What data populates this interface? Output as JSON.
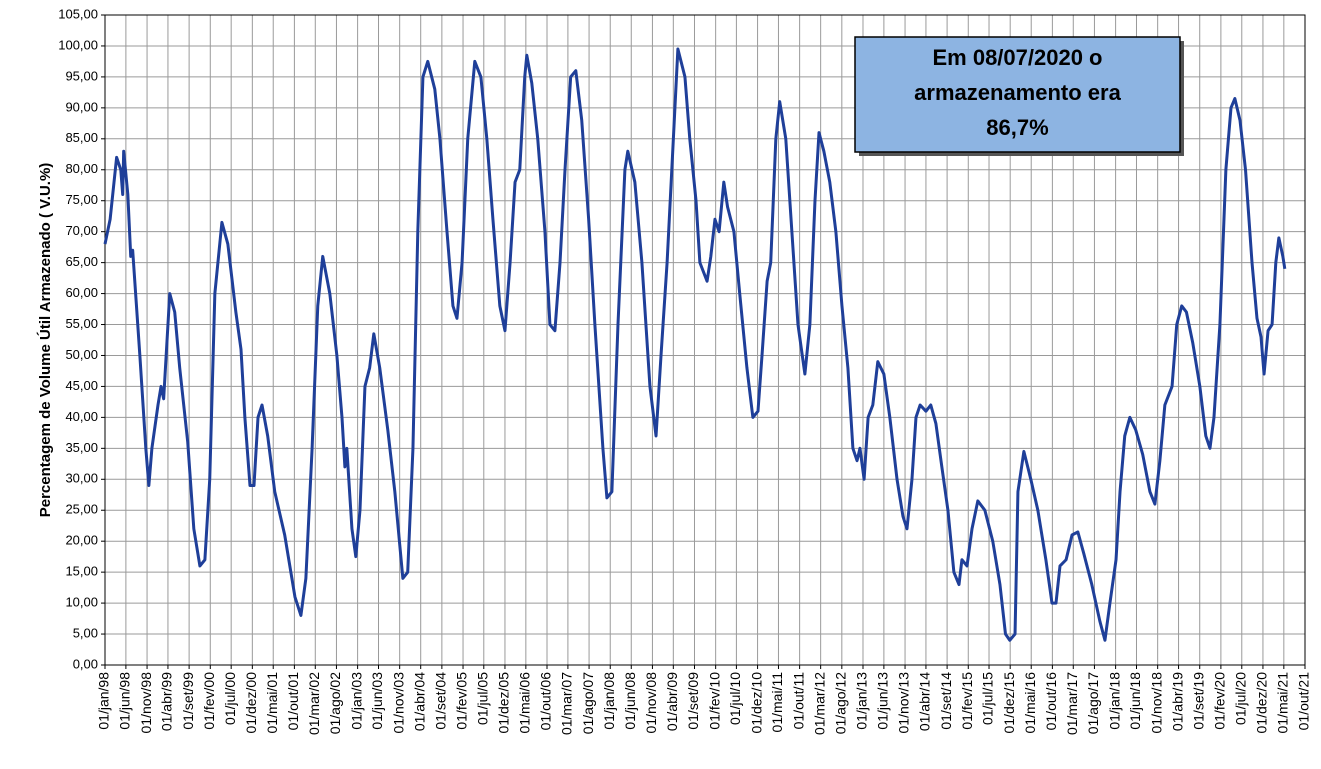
{
  "chart_data": {
    "type": "line",
    "y_label": "Percentagem de Volume Útil Armazenado ( V.U.%)",
    "annotation": [
      "Em 08/07/2020 o",
      "armazenamento era",
      "86,7%"
    ],
    "annotation_color": "#8db4e2",
    "grid": true,
    "xlim": [
      "1998-01-01",
      "2021-10-01"
    ],
    "ylim": [
      0,
      105
    ],
    "yticks": [
      {
        "value": 0,
        "label": "0,00"
      },
      {
        "value": 5,
        "label": "5,00"
      },
      {
        "value": 10,
        "label": "10,00"
      },
      {
        "value": 15,
        "label": "15,00"
      },
      {
        "value": 20,
        "label": "20,00"
      },
      {
        "value": 25,
        "label": "25,00"
      },
      {
        "value": 30,
        "label": "30,00"
      },
      {
        "value": 35,
        "label": "35,00"
      },
      {
        "value": 40,
        "label": "40,00"
      },
      {
        "value": 45,
        "label": "45,00"
      },
      {
        "value": 50,
        "label": "50,00"
      },
      {
        "value": 55,
        "label": "55,00"
      },
      {
        "value": 60,
        "label": "60,00"
      },
      {
        "value": 65,
        "label": "65,00"
      },
      {
        "value": 70,
        "label": "70,00"
      },
      {
        "value": 75,
        "label": "75,00"
      },
      {
        "value": 80,
        "label": "80,00"
      },
      {
        "value": 85,
        "label": "85,00"
      },
      {
        "value": 90,
        "label": "90,00"
      },
      {
        "value": 95,
        "label": "95,00"
      },
      {
        "value": 100,
        "label": "100,00"
      },
      {
        "value": 105,
        "label": "105,00"
      }
    ],
    "xticks": [
      {
        "value": "1998-01-01",
        "label": "01/jan/98"
      },
      {
        "value": "1998-06-01",
        "label": "01/jun/98"
      },
      {
        "value": "1998-11-01",
        "label": "01/nov/98"
      },
      {
        "value": "1999-04-01",
        "label": "01/abr/99"
      },
      {
        "value": "1999-09-01",
        "label": "01/set/99"
      },
      {
        "value": "2000-02-01",
        "label": "01/fev/00"
      },
      {
        "value": "2000-07-01",
        "label": "01/jul/00"
      },
      {
        "value": "2000-12-01",
        "label": "01/dez/00"
      },
      {
        "value": "2001-05-01",
        "label": "01/mai/01"
      },
      {
        "value": "2001-10-01",
        "label": "01/out/01"
      },
      {
        "value": "2002-03-01",
        "label": "01/mar/02"
      },
      {
        "value": "2002-08-01",
        "label": "01/ago/02"
      },
      {
        "value": "2003-01-01",
        "label": "01/jan/03"
      },
      {
        "value": "2003-06-01",
        "label": "01/jun/03"
      },
      {
        "value": "2003-11-01",
        "label": "01/nov/03"
      },
      {
        "value": "2004-04-01",
        "label": "01/abr/04"
      },
      {
        "value": "2004-09-01",
        "label": "01/set/04"
      },
      {
        "value": "2005-02-01",
        "label": "01/fev/05"
      },
      {
        "value": "2005-07-01",
        "label": "01/jul/05"
      },
      {
        "value": "2005-12-01",
        "label": "01/dez/05"
      },
      {
        "value": "2006-05-01",
        "label": "01/mai/06"
      },
      {
        "value": "2006-10-01",
        "label": "01/out/06"
      },
      {
        "value": "2007-03-01",
        "label": "01/mar/07"
      },
      {
        "value": "2007-08-01",
        "label": "01/ago/07"
      },
      {
        "value": "2008-01-01",
        "label": "01/jan/08"
      },
      {
        "value": "2008-06-01",
        "label": "01/jun/08"
      },
      {
        "value": "2008-11-01",
        "label": "01/nov/08"
      },
      {
        "value": "2009-04-01",
        "label": "01/abr/09"
      },
      {
        "value": "2009-09-01",
        "label": "01/set/09"
      },
      {
        "value": "2010-02-01",
        "label": "01/fev/10"
      },
      {
        "value": "2010-07-01",
        "label": "01/jul/10"
      },
      {
        "value": "2010-12-01",
        "label": "01/dez/10"
      },
      {
        "value": "2011-05-01",
        "label": "01/mai/11"
      },
      {
        "value": "2011-10-01",
        "label": "01/out/11"
      },
      {
        "value": "2012-03-01",
        "label": "01/mar/12"
      },
      {
        "value": "2012-08-01",
        "label": "01/ago/12"
      },
      {
        "value": "2013-01-01",
        "label": "01/jan/13"
      },
      {
        "value": "2013-06-01",
        "label": "01/jun/13"
      },
      {
        "value": "2013-11-01",
        "label": "01/nov/13"
      },
      {
        "value": "2014-04-01",
        "label": "01/abr/14"
      },
      {
        "value": "2014-09-01",
        "label": "01/set/14"
      },
      {
        "value": "2015-02-01",
        "label": "01/fev/15"
      },
      {
        "value": "2015-07-01",
        "label": "01/jul/15"
      },
      {
        "value": "2015-12-01",
        "label": "01/dez/15"
      },
      {
        "value": "2016-05-01",
        "label": "01/mai/16"
      },
      {
        "value": "2016-10-01",
        "label": "01/out/16"
      },
      {
        "value": "2017-03-01",
        "label": "01/mar/17"
      },
      {
        "value": "2017-08-01",
        "label": "01/ago/17"
      },
      {
        "value": "2018-01-01",
        "label": "01/jan/18"
      },
      {
        "value": "2018-06-01",
        "label": "01/jun/18"
      },
      {
        "value": "2018-11-01",
        "label": "01/nov/18"
      },
      {
        "value": "2019-04-01",
        "label": "01/abr/19"
      },
      {
        "value": "2019-09-01",
        "label": "01/set/19"
      },
      {
        "value": "2020-02-01",
        "label": "01/fev/20"
      },
      {
        "value": "2020-07-01",
        "label": "01/jul/20"
      },
      {
        "value": "2020-12-01",
        "label": "01/dez/20"
      },
      {
        "value": "2021-05-01",
        "label": "01/mai/21"
      },
      {
        "value": "2021-10-01",
        "label": "01/out/21"
      }
    ],
    "x": [
      "1998-01-01",
      "1998-02-07",
      "1998-03-26",
      "1998-04-25",
      "1998-05-09",
      "1998-05-16",
      "1998-06-15",
      "1998-07-06",
      "1998-07-20",
      "1998-09-10",
      "1998-10-23",
      "1998-11-14",
      "1998-12-06",
      "1999-01-19",
      "1999-02-10",
      "1999-03-01",
      "1999-04-14",
      "1999-05-20",
      "1999-06-25",
      "1999-08-22",
      "1999-10-05",
      "1999-11-18",
      "1999-12-24",
      "2000-01-28",
      "2000-03-05",
      "2000-04-25",
      "2000-06-07",
      "2000-08-04",
      "2000-09-10",
      "2000-10-08",
      "2000-11-14",
      "2000-12-13",
      "2001-01-11",
      "2001-02-09",
      "2001-03-22",
      "2001-05-12",
      "2001-07-23",
      "2001-10-05",
      "2001-11-17",
      "2001-12-23",
      "2002-02-06",
      "2002-03-19",
      "2002-04-24",
      "2002-06-14",
      "2002-08-04",
      "2002-09-10",
      "2002-10-01",
      "2002-10-15",
      "2002-11-21",
      "2002-12-19",
      "2003-01-18",
      "2003-02-23",
      "2003-03-29",
      "2003-04-28",
      "2003-06-10",
      "2003-08-07",
      "2003-09-27",
      "2003-11-24",
      "2003-12-29",
      "2004-02-05",
      "2004-03-11",
      "2004-04-17",
      "2004-05-22",
      "2004-07-12",
      "2004-08-18",
      "2004-10-08",
      "2004-11-20",
      "2004-12-19",
      "2005-01-25",
      "2005-03-07",
      "2005-04-27",
      "2005-06-10",
      "2005-07-23",
      "2005-09-05",
      "2005-10-25",
      "2005-12-01",
      "2006-01-07",
      "2006-02-12",
      "2006-03-18",
      "2006-04-23",
      "2006-05-08",
      "2006-06-13",
      "2006-07-26",
      "2006-09-16",
      "2006-10-22",
      "2006-11-27",
      "2007-01-03",
      "2007-02-08",
      "2007-03-21",
      "2007-04-27",
      "2007-06-09",
      "2007-07-29",
      "2007-09-12",
      "2007-11-09",
      "2007-12-08",
      "2008-01-13",
      "2008-02-26",
      "2008-04-16",
      "2008-05-07",
      "2008-06-27",
      "2008-08-17",
      "2008-10-14",
      "2008-11-27",
      "2009-01-02",
      "2009-02-15",
      "2009-03-21",
      "2009-05-04",
      "2009-06-24",
      "2009-07-29",
      "2009-09-12",
      "2009-10-10",
      "2009-12-01",
      "2009-12-28",
      "2010-01-27",
      "2010-02-26",
      "2010-04-01",
      "2010-04-28",
      "2010-06-13",
      "2010-07-25",
      "2010-09-15",
      "2010-10-28",
      "2010-12-04",
      "2011-01-02",
      "2011-02-08",
      "2011-03-06",
      "2011-04-12",
      "2011-05-10",
      "2011-06-23",
      "2011-08-06",
      "2011-09-19",
      "2011-11-08",
      "2011-12-14",
      "2012-01-20",
      "2012-02-18",
      "2012-03-24",
      "2012-05-06",
      "2012-06-19",
      "2012-08-02",
      "2012-09-14",
      "2012-10-20",
      "2012-11-19",
      "2012-12-10",
      "2013-01-09",
      "2013-02-07",
      "2013-03-13",
      "2013-04-18",
      "2013-06-01",
      "2013-07-14",
      "2013-09-04",
      "2013-10-17",
      "2013-11-15",
      "2013-12-21",
      "2014-01-19",
      "2014-02-18",
      "2014-04-01",
      "2014-05-06",
      "2014-06-12",
      "2014-07-25",
      "2014-09-07",
      "2014-10-20",
      "2014-11-26",
      "2014-12-17",
      "2015-01-23",
      "2015-02-28",
      "2015-04-11",
      "2015-06-01",
      "2015-07-28",
      "2015-09-18",
      "2015-10-28",
      "2015-11-28",
      "2016-01-05",
      "2016-01-26",
      "2016-03-09",
      "2016-04-28",
      "2016-06-18",
      "2016-08-15",
      "2016-09-28",
      "2016-10-27",
      "2016-11-25",
      "2017-01-08",
      "2017-02-20",
      "2017-04-03",
      "2017-05-16",
      "2017-07-13",
      "2017-09-10",
      "2017-10-16",
      "2017-11-21",
      "2018-01-04",
      "2018-02-02",
      "2018-03-08",
      "2018-04-14",
      "2018-05-26",
      "2018-07-16",
      "2018-09-06",
      "2018-10-12",
      "2018-11-17",
      "2018-12-23",
      "2019-02-13",
      "2019-03-19",
      "2019-04-24",
      "2019-05-28",
      "2019-07-13",
      "2019-09-02",
      "2019-10-15",
      "2019-11-14",
      "2019-12-13",
      "2020-01-25",
      "2020-03-08",
      "2020-04-14",
      "2020-05-12",
      "2020-06-18",
      "2020-07-28",
      "2020-09-13",
      "2020-10-19",
      "2020-11-17",
      "2020-12-09",
      "2021-01-07",
      "2021-02-05",
      "2021-03-04",
      "2021-03-26",
      "2021-04-24",
      "2021-05-08"
    ],
    "series": [
      {
        "color": "#1f3f99",
        "values": [
          68,
          72,
          82,
          80,
          76,
          83,
          76,
          66,
          67,
          50,
          35,
          29,
          35,
          42,
          45,
          43,
          60,
          57,
          48,
          36,
          22,
          16,
          17,
          30,
          60,
          71.5,
          68,
          57,
          51,
          40,
          29,
          29,
          40,
          42,
          37,
          28,
          21,
          11,
          8,
          14,
          35,
          58,
          66,
          60,
          50,
          40,
          32,
          35,
          22,
          17.5,
          25,
          45,
          48,
          53.5,
          48,
          38,
          28,
          14,
          15,
          35,
          70,
          95,
          97.5,
          93,
          85,
          70,
          58,
          56,
          65,
          85,
          97.5,
          95,
          85,
          72,
          58,
          54,
          65,
          78,
          80,
          95,
          98.5,
          94,
          85,
          70,
          55,
          54,
          65,
          80,
          95,
          96,
          88,
          72,
          55,
          35,
          27,
          28,
          55,
          80,
          83,
          78,
          65,
          45,
          37,
          50,
          65,
          80,
          99.5,
          95,
          85,
          75,
          65,
          62,
          66,
          72,
          70,
          78,
          74,
          70,
          60,
          48,
          40,
          41,
          50,
          62,
          65,
          85,
          91,
          85,
          70,
          55,
          47,
          55,
          75,
          86,
          83,
          78,
          70,
          58,
          48,
          35,
          33,
          35,
          30,
          40,
          42,
          49,
          47,
          40,
          30,
          24,
          22,
          30,
          40,
          42,
          41,
          42,
          39,
          32,
          25,
          15,
          13,
          17,
          16,
          22,
          26.5,
          25,
          20,
          13,
          5,
          4,
          5,
          28,
          34.5,
          30,
          25,
          17,
          10,
          10,
          16,
          17,
          21,
          21.5,
          18,
          13,
          7,
          4,
          10,
          17,
          28,
          37,
          40,
          38,
          34,
          28,
          26,
          33,
          42,
          45,
          55,
          58,
          57,
          52,
          45,
          37,
          35,
          40,
          55,
          80,
          90,
          91.5,
          88,
          80,
          65,
          56,
          53,
          47,
          54,
          55,
          65,
          69,
          66,
          64
        ]
      }
    ]
  }
}
